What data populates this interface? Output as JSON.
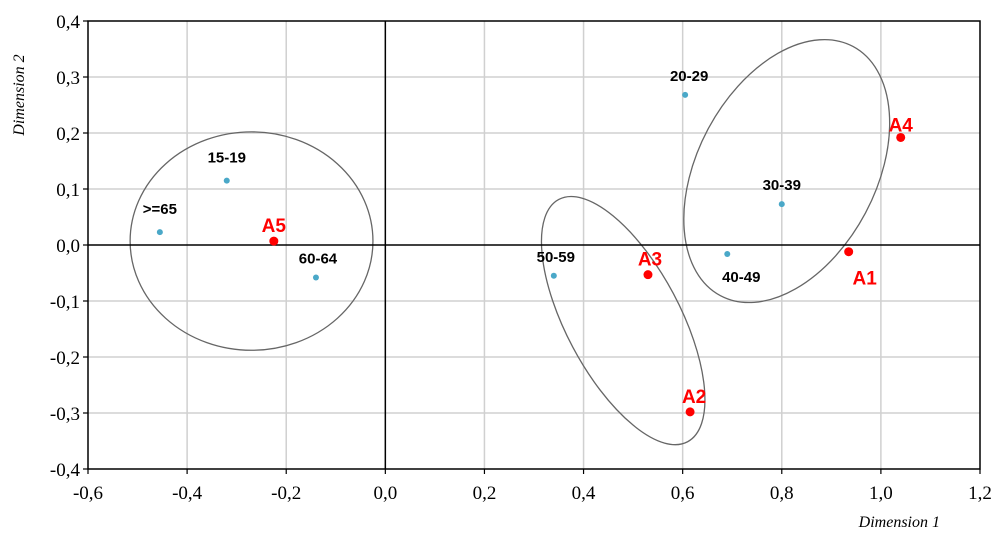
{
  "chart_data": {
    "type": "scatter",
    "xlabel": "Dimension 1",
    "ylabel": "Dimension 2",
    "xlim": [
      -0.6,
      1.2
    ],
    "ylim": [
      -0.4,
      0.4
    ],
    "x_ticks": [
      -0.6,
      -0.4,
      -0.2,
      0.0,
      0.2,
      0.4,
      0.6,
      0.8,
      1.0,
      1.2
    ],
    "y_ticks": [
      -0.4,
      -0.3,
      -0.2,
      -0.1,
      0.0,
      0.1,
      0.2,
      0.3,
      0.4
    ],
    "x_tick_labels": [
      "-0,6",
      "-0,4",
      "-0,2",
      "0,0",
      "0,2",
      "0,4",
      "0,6",
      "0,8",
      "1,0",
      "1,2"
    ],
    "y_tick_labels": [
      "-0,4",
      "-0,3",
      "-0,2",
      "-0,1",
      "0,0",
      "0,1",
      "0,2",
      "0,3",
      "0,4"
    ],
    "grid": true,
    "series": [
      {
        "name": "",
        "color": "#4aa8c8",
        "points": [
          {
            "label": "15-19",
            "x": -0.32,
            "y": 0.115
          },
          {
            "label": ">=65",
            "x": -0.455,
            "y": 0.023
          },
          {
            "label": "60-64",
            "x": -0.14,
            "y": -0.058
          },
          {
            "label": "20-29",
            "x": 0.605,
            "y": 0.268
          },
          {
            "label": "30-39",
            "x": 0.8,
            "y": 0.073
          },
          {
            "label": "40-49",
            "x": 0.69,
            "y": -0.016
          },
          {
            "label": "50-59",
            "x": 0.34,
            "y": -0.055
          }
        ]
      },
      {
        "name": "",
        "color": "#ff0000",
        "points": [
          {
            "label": "A1",
            "x": 0.935,
            "y": -0.012
          },
          {
            "label": "A2",
            "x": 0.615,
            "y": -0.298
          },
          {
            "label": "A3",
            "x": 0.53,
            "y": -0.053
          },
          {
            "label": "A4",
            "x": 1.04,
            "y": 0.192
          },
          {
            "label": "A5",
            "x": -0.225,
            "y": 0.007
          }
        ]
      }
    ],
    "groups": [
      {
        "cx": -0.27,
        "cy": 0.007,
        "rx": 0.245,
        "ry": 0.195,
        "rotation": 0
      },
      {
        "cx": 0.81,
        "cy": 0.132,
        "rx": 0.18,
        "ry": 0.252,
        "rotation": 28
      },
      {
        "cx": 0.48,
        "cy": -0.135,
        "rx": 0.115,
        "ry": 0.245,
        "rotation": -28
      }
    ]
  }
}
